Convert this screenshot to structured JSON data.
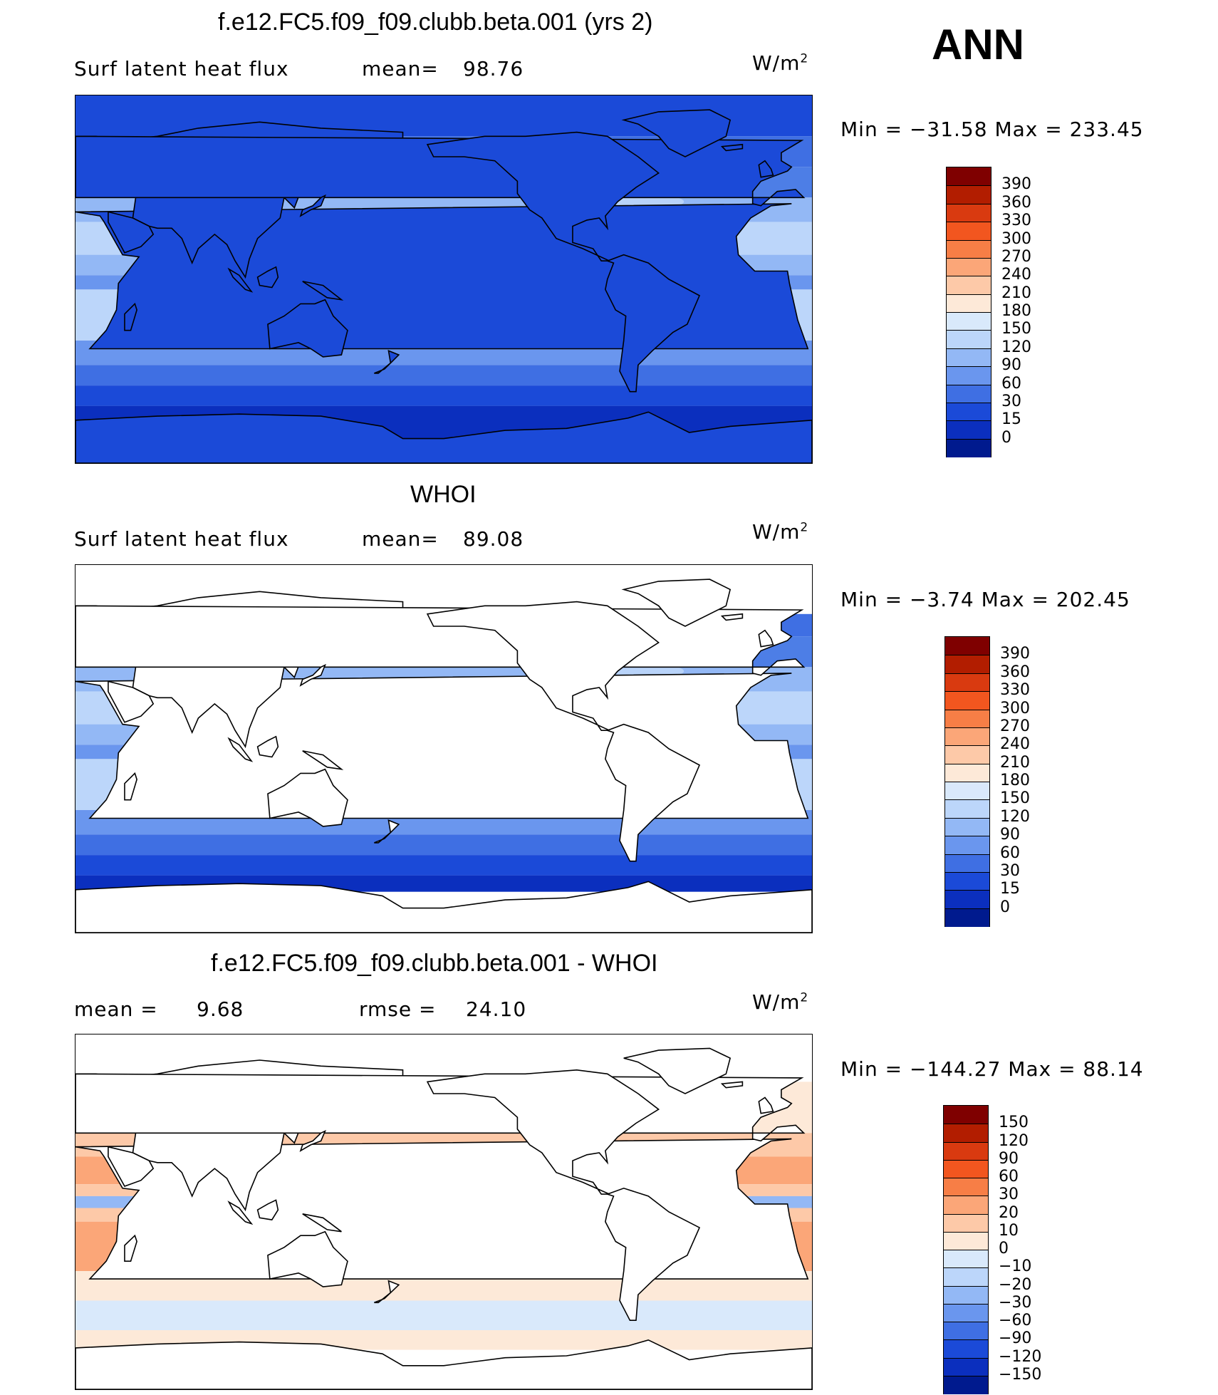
{
  "season": "ANN",
  "panels": [
    {
      "id": "model",
      "title": "f.e12.FC5.f09_f09.clubb.beta.001 (yrs 2)",
      "left_label": "Surf  latent  heat  flux",
      "stat1_label": "mean=",
      "stat1_value": "98.76",
      "stat2_label": "",
      "stat2_value": "",
      "units": "W/m",
      "units_exp": "2",
      "minmax": "Min  =  −31.58  Max  =  233.45",
      "colorbar_levels": [
        "390",
        "360",
        "330",
        "300",
        "270",
        "240",
        "210",
        "180",
        "150",
        "120",
        "90",
        "60",
        "30",
        "15",
        "0"
      ],
      "colorbar_colors": [
        "#7f0000",
        "#b21d00",
        "#d93a10",
        "#f2561f",
        "#f77e46",
        "#fba678",
        "#fdc9a8",
        "#fde9d8",
        "#d9e9fb",
        "#bcd6fa",
        "#93b8f5",
        "#6a96ee",
        "#3f6fe3",
        "#1b4ad8",
        "#0b2fbe",
        "#001a8e"
      ],
      "map_style": "full"
    },
    {
      "id": "obs",
      "title": "WHOI",
      "left_label": "Surf  latent  heat  flux",
      "stat1_label": "mean=",
      "stat1_value": "89.08",
      "stat2_label": "",
      "stat2_value": "",
      "units": "W/m",
      "units_exp": "2",
      "minmax": "Min  =    −3.74  Max  =  202.45",
      "colorbar_levels": [
        "390",
        "360",
        "330",
        "300",
        "270",
        "240",
        "210",
        "180",
        "150",
        "120",
        "90",
        "60",
        "30",
        "15",
        "0"
      ],
      "colorbar_colors": [
        "#7f0000",
        "#b21d00",
        "#d93a10",
        "#f2561f",
        "#f77e46",
        "#fba678",
        "#fdc9a8",
        "#fde9d8",
        "#d9e9fb",
        "#bcd6fa",
        "#93b8f5",
        "#6a96ee",
        "#3f6fe3",
        "#1b4ad8",
        "#0b2fbe",
        "#001a8e"
      ],
      "map_style": "ocean"
    },
    {
      "id": "diff",
      "title": "f.e12.FC5.f09_f09.clubb.beta.001 - WHOI",
      "left_label": "mean  =",
      "stat1_label": "",
      "stat1_value": "9.68",
      "stat2_label": "rmse  =",
      "stat2_value": "24.10",
      "units": "W/m",
      "units_exp": "2",
      "minmax": "Min  =  −144.27  Max  =    88.14",
      "colorbar_levels": [
        "150",
        "120",
        "90",
        "60",
        "30",
        "20",
        "10",
        "0",
        "−10",
        "−20",
        "−30",
        "−60",
        "−90",
        "−120",
        "−150"
      ],
      "colorbar_colors": [
        "#7f0000",
        "#b21d00",
        "#d93a10",
        "#f2561f",
        "#f77e46",
        "#fba678",
        "#fdc9a8",
        "#fde9d8",
        "#d9e9fb",
        "#bcd6fa",
        "#93b8f5",
        "#6a96ee",
        "#3f6fe3",
        "#1b4ad8",
        "#0b2fbe",
        "#001a8e"
      ],
      "map_style": "diff"
    }
  ],
  "chart_data": [
    {
      "type": "heatmap",
      "title": "f.e12.FC5.f09_f09.clubb.beta.001 (yrs 2)",
      "variable": "Surf  latent  heat  flux",
      "units": "W/m2",
      "mean": 98.76,
      "min": -31.58,
      "max": 233.45,
      "contour_levels": [
        0,
        15,
        30,
        60,
        90,
        120,
        150,
        180,
        210,
        240,
        270,
        300,
        330,
        360,
        390
      ]
    },
    {
      "type": "heatmap",
      "title": "WHOI",
      "variable": "Surf  latent  heat  flux",
      "units": "W/m2",
      "mean": 89.08,
      "min": -3.74,
      "max": 202.45,
      "contour_levels": [
        0,
        15,
        30,
        60,
        90,
        120,
        150,
        180,
        210,
        240,
        270,
        300,
        330,
        360,
        390
      ]
    },
    {
      "type": "heatmap",
      "title": "f.e12.FC5.f09_f09.clubb.beta.001 - WHOI",
      "units": "W/m2",
      "mean": 9.68,
      "rmse": 24.1,
      "min": -144.27,
      "max": 88.14,
      "contour_levels": [
        -150,
        -120,
        -90,
        -60,
        -30,
        -20,
        -10,
        0,
        10,
        20,
        30,
        60,
        90,
        120,
        150
      ]
    }
  ]
}
